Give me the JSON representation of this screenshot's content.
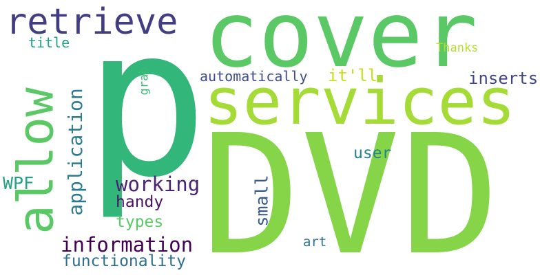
{
  "words": [
    {
      "text": "DVD",
      "color": "#86d549"
    },
    {
      "text": "p",
      "color": "#32b67a"
    },
    {
      "text": "cover",
      "color": "#5ac864"
    },
    {
      "text": "services",
      "color": "#a5db36"
    },
    {
      "text": "retrieve",
      "color": "#433d84"
    },
    {
      "text": "allow",
      "color": "#5ac864"
    },
    {
      "text": "application",
      "color": "#2b7b8e"
    },
    {
      "text": "working",
      "color": "#482475"
    },
    {
      "text": "handy",
      "color": "#471365"
    },
    {
      "text": "types",
      "color": "#5ac864"
    },
    {
      "text": "information",
      "color": "#440154"
    },
    {
      "text": "functionality",
      "color": "#2e6f8e"
    },
    {
      "text": "WPF",
      "color": "#20a386"
    },
    {
      "text": "small",
      "color": "#38598c"
    },
    {
      "text": "user",
      "color": "#26828e"
    },
    {
      "text": "inserts",
      "color": "#414487"
    },
    {
      "text": "automatically",
      "color": "#3e4c8a"
    },
    {
      "text": "it'll",
      "color": "#c8e020"
    },
    {
      "text": "Thanks",
      "color": "#b5de2b"
    },
    {
      "text": "title",
      "color": "#1fa188"
    },
    {
      "text": "grab",
      "color": "#3bbb75"
    },
    {
      "text": "art",
      "color": "#2d708e"
    }
  ]
}
